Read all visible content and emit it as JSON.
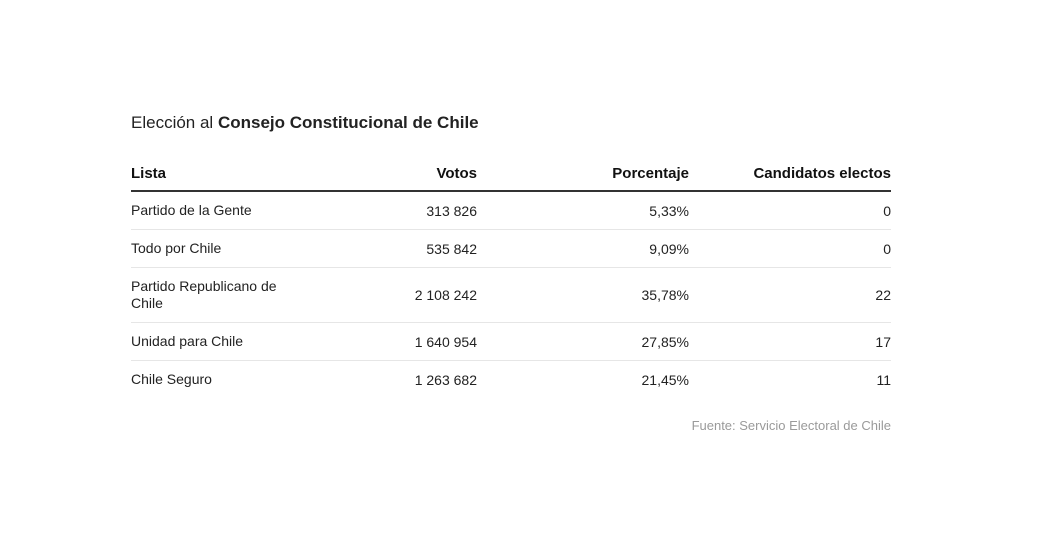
{
  "title": {
    "prefix": "Elección al ",
    "bold": "Consejo Constitucional de Chile"
  },
  "chart_data": {
    "type": "table",
    "columns": [
      "Lista",
      "Votos",
      "Porcentaje",
      "Candidatos electos"
    ],
    "rows": [
      {
        "lista": "Partido de la Gente",
        "votos": "313 826",
        "porcentaje": "5,33%",
        "candidatos": "0"
      },
      {
        "lista": "Todo por Chile",
        "votos": "535 842",
        "porcentaje": "9,09%",
        "candidatos": "0"
      },
      {
        "lista": "Partido Republicano de Chile",
        "votos": "2 108 242",
        "porcentaje": "35,78%",
        "candidatos": "22"
      },
      {
        "lista": "Unidad para Chile",
        "votos": "1 640 954",
        "porcentaje": "27,85%",
        "candidatos": "17"
      },
      {
        "lista": "Chile Seguro",
        "votos": "1 263 682",
        "porcentaje": "21,45%",
        "candidatos": "11"
      }
    ]
  },
  "source": "Fuente: Servicio Electoral de Chile"
}
